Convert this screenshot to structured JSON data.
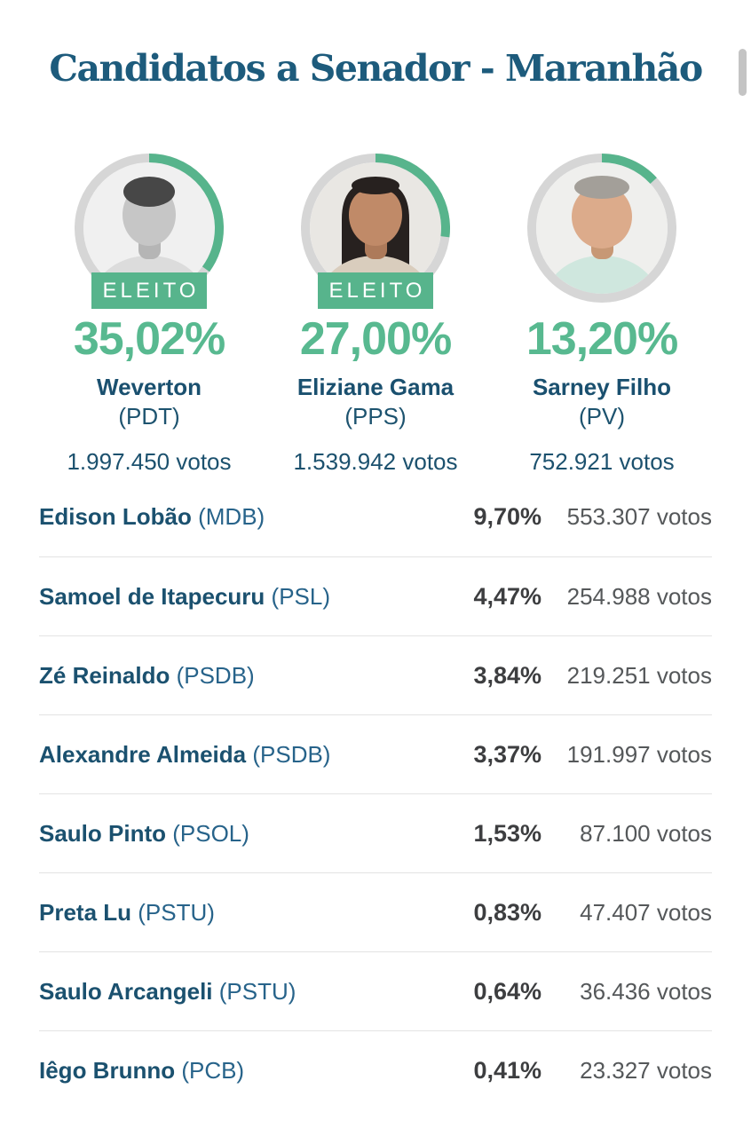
{
  "page": {
    "title": "Candidatos a Senador - Maranhão"
  },
  "colors": {
    "accent_green": "#57b48c",
    "title_navy": "#1d5b7c",
    "name_navy": "#1a506f",
    "ring_gray": "#d6d6d6"
  },
  "top_candidates": [
    {
      "name": "Weverton",
      "party": "(PDT)",
      "percent": "35,02%",
      "percent_value": 35.02,
      "votes": "1.997.450 votos",
      "elected": true,
      "badge": "ELEITO",
      "avatar": {
        "label": "weverton-photo",
        "bg": "#f0f0f0",
        "hair": "#474747",
        "skin": "#c6c6c6",
        "neck": "#b5b5b5",
        "shirt": "#dcdcdc",
        "style": "short"
      }
    },
    {
      "name": "Eliziane Gama",
      "party": "(PPS)",
      "percent": "27,00%",
      "percent_value": 27.0,
      "votes": "1.539.942 votos",
      "elected": true,
      "badge": "ELEITO",
      "avatar": {
        "label": "eliziane-photo",
        "bg": "#e9e7e3",
        "hair": "#27211f",
        "skin": "#c08a68",
        "neck": "#ad7a5a",
        "shirt": "#d9cdbd",
        "style": "long"
      }
    },
    {
      "name": "Sarney Filho",
      "party": "(PV)",
      "percent": "13,20%",
      "percent_value": 13.2,
      "votes": "752.921 votos",
      "elected": false,
      "badge": "",
      "avatar": {
        "label": "sarney-photo",
        "bg": "#efefed",
        "hair": "#a39f99",
        "skin": "#dcab8b",
        "neck": "#c79875",
        "shirt": "#cfe7de",
        "style": "old"
      }
    }
  ],
  "other_candidates": [
    {
      "name": "Edison Lobão",
      "party": "(MDB)",
      "percent": "9,70%",
      "votes": "553.307 votos"
    },
    {
      "name": "Samoel de Itapecuru",
      "party": "(PSL)",
      "percent": "4,47%",
      "votes": "254.988 votos"
    },
    {
      "name": "Zé Reinaldo",
      "party": "(PSDB)",
      "percent": "3,84%",
      "votes": "219.251 votos"
    },
    {
      "name": "Alexandre Almeida",
      "party": "(PSDB)",
      "percent": "3,37%",
      "votes": "191.997 votos"
    },
    {
      "name": "Saulo Pinto",
      "party": "(PSOL)",
      "percent": "1,53%",
      "votes": "87.100 votos"
    },
    {
      "name": "Preta Lu",
      "party": "(PSTU)",
      "percent": "0,83%",
      "votes": "47.407 votos"
    },
    {
      "name": "Saulo Arcangeli",
      "party": "(PSTU)",
      "percent": "0,64%",
      "votes": "36.436 votos"
    },
    {
      "name": "Iêgo Brunno",
      "party": "(PCB)",
      "percent": "0,41%",
      "votes": "23.327 votos"
    }
  ]
}
